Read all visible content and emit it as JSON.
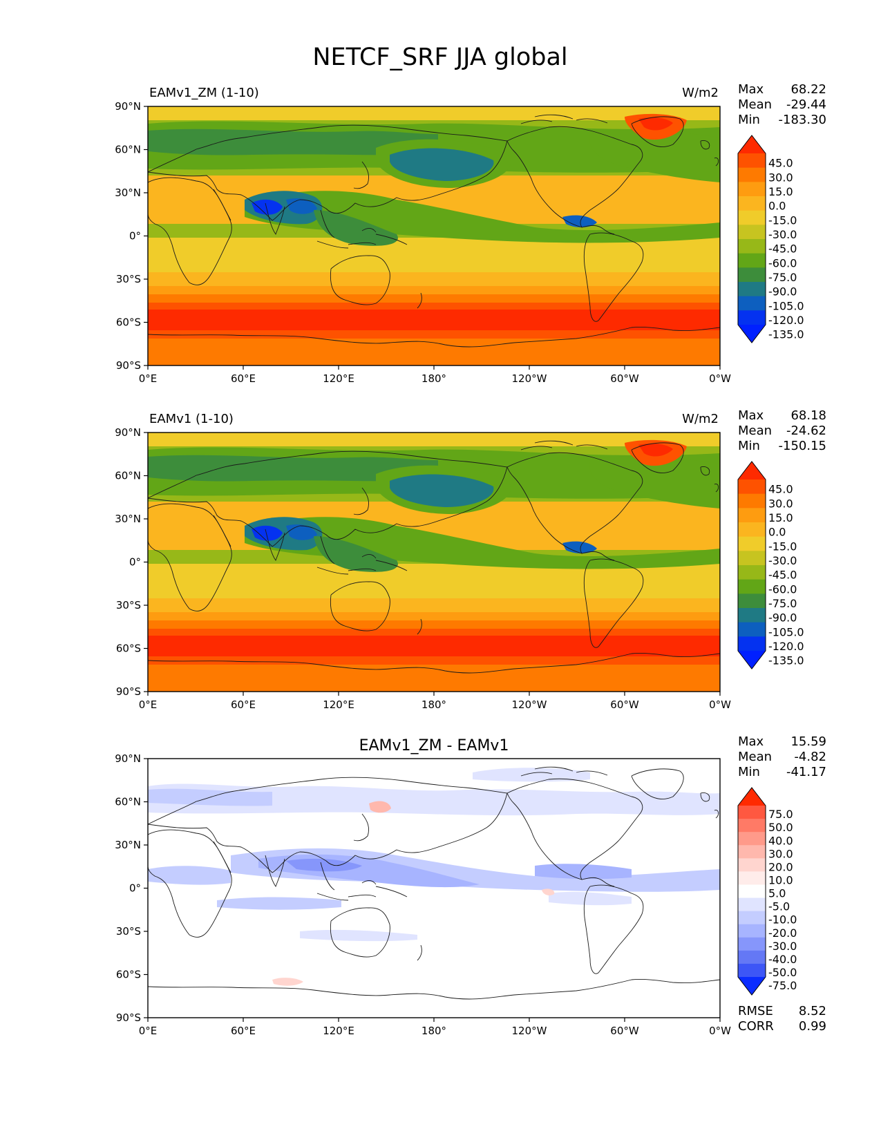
{
  "figure_title": "NETCF_SRF JJA global",
  "chart_data": [
    {
      "type": "heatmap",
      "map": "global contour map",
      "title_left": "EAMv1_ZM (1-10)",
      "title_right": "W/m2",
      "stats": {
        "max_label": "Max",
        "max": "68.22",
        "mean_label": "Mean",
        "mean": "-29.44",
        "min_label": "Min",
        "min": "-183.30"
      },
      "xticks": [
        "0°E",
        "60°E",
        "120°E",
        "180°",
        "120°W",
        "60°W",
        "0°W"
      ],
      "yticks": [
        "90°N",
        "60°N",
        "30°N",
        "0°",
        "30°S",
        "60°S",
        "90°S"
      ],
      "colorbar": {
        "levels": [
          "45.0",
          "30.0",
          "15.0",
          "0.0",
          "-15.0",
          "-30.0",
          "-45.0",
          "-60.0",
          "-75.0",
          "-90.0",
          "-105.0",
          "-120.0",
          "-135.0"
        ],
        "colors": [
          "#fe2a00",
          "#fe5200",
          "#fe7a00",
          "#fe9c10",
          "#fbb51f",
          "#f0cc2a",
          "#c7c420",
          "#97b818",
          "#62a617",
          "#3d8d3b",
          "#1f7a84",
          "#0d5fbf",
          "#0432f0",
          "#0020ff"
        ]
      },
      "field": "base"
    },
    {
      "type": "heatmap",
      "map": "global contour map",
      "title_left": "EAMv1 (1-10)",
      "title_right": "W/m2",
      "stats": {
        "max_label": "Max",
        "max": "68.18",
        "mean_label": "Mean",
        "mean": "-24.62",
        "min_label": "Min",
        "min": "-150.15"
      },
      "xticks": [
        "0°E",
        "60°E",
        "120°E",
        "180°",
        "120°W",
        "60°W",
        "0°W"
      ],
      "yticks": [
        "90°N",
        "60°N",
        "30°N",
        "0°",
        "30°S",
        "60°S",
        "90°S"
      ],
      "colorbar": {
        "levels": [
          "45.0",
          "30.0",
          "15.0",
          "0.0",
          "-15.0",
          "-30.0",
          "-45.0",
          "-60.0",
          "-75.0",
          "-90.0",
          "-105.0",
          "-120.0",
          "-135.0"
        ],
        "colors": [
          "#fe2a00",
          "#fe5200",
          "#fe7a00",
          "#fe9c10",
          "#fbb51f",
          "#f0cc2a",
          "#c7c420",
          "#97b818",
          "#62a617",
          "#3d8d3b",
          "#1f7a84",
          "#0d5fbf",
          "#0432f0",
          "#0020ff"
        ]
      },
      "field": "base"
    },
    {
      "type": "heatmap",
      "map": "global contour map",
      "title_center": "EAMv1_ZM - EAMv1",
      "stats": {
        "max_label": "Max",
        "max": "15.59",
        "mean_label": "Mean",
        "mean": "-4.82",
        "min_label": "Min",
        "min": "-41.17"
      },
      "xticks": [
        "0°E",
        "60°E",
        "120°E",
        "180°",
        "120°W",
        "60°W",
        "0°W"
      ],
      "yticks": [
        "90°N",
        "60°N",
        "30°N",
        "0°",
        "30°S",
        "60°S",
        "90°S"
      ],
      "colorbar": {
        "levels": [
          "75.0",
          "50.0",
          "40.0",
          "30.0",
          "20.0",
          "10.0",
          "5.0",
          "-5.0",
          "-10.0",
          "-20.0",
          "-30.0",
          "-40.0",
          "-50.0",
          "-75.0"
        ],
        "colors": [
          "#ff2a00",
          "#ff5840",
          "#ff7a66",
          "#ff9a8a",
          "#ffb8ad",
          "#ffd5cf",
          "#ffecea",
          "#ffffff",
          "#e0e4ff",
          "#c4cdff",
          "#a7b4ff",
          "#8696fb",
          "#6478f5",
          "#3d56f6",
          "#0a2cff"
        ]
      },
      "diff_stats": {
        "rmse_label": "RMSE",
        "rmse": "8.52",
        "corr_label": "CORR",
        "corr": "0.99"
      },
      "field": "diff"
    }
  ]
}
